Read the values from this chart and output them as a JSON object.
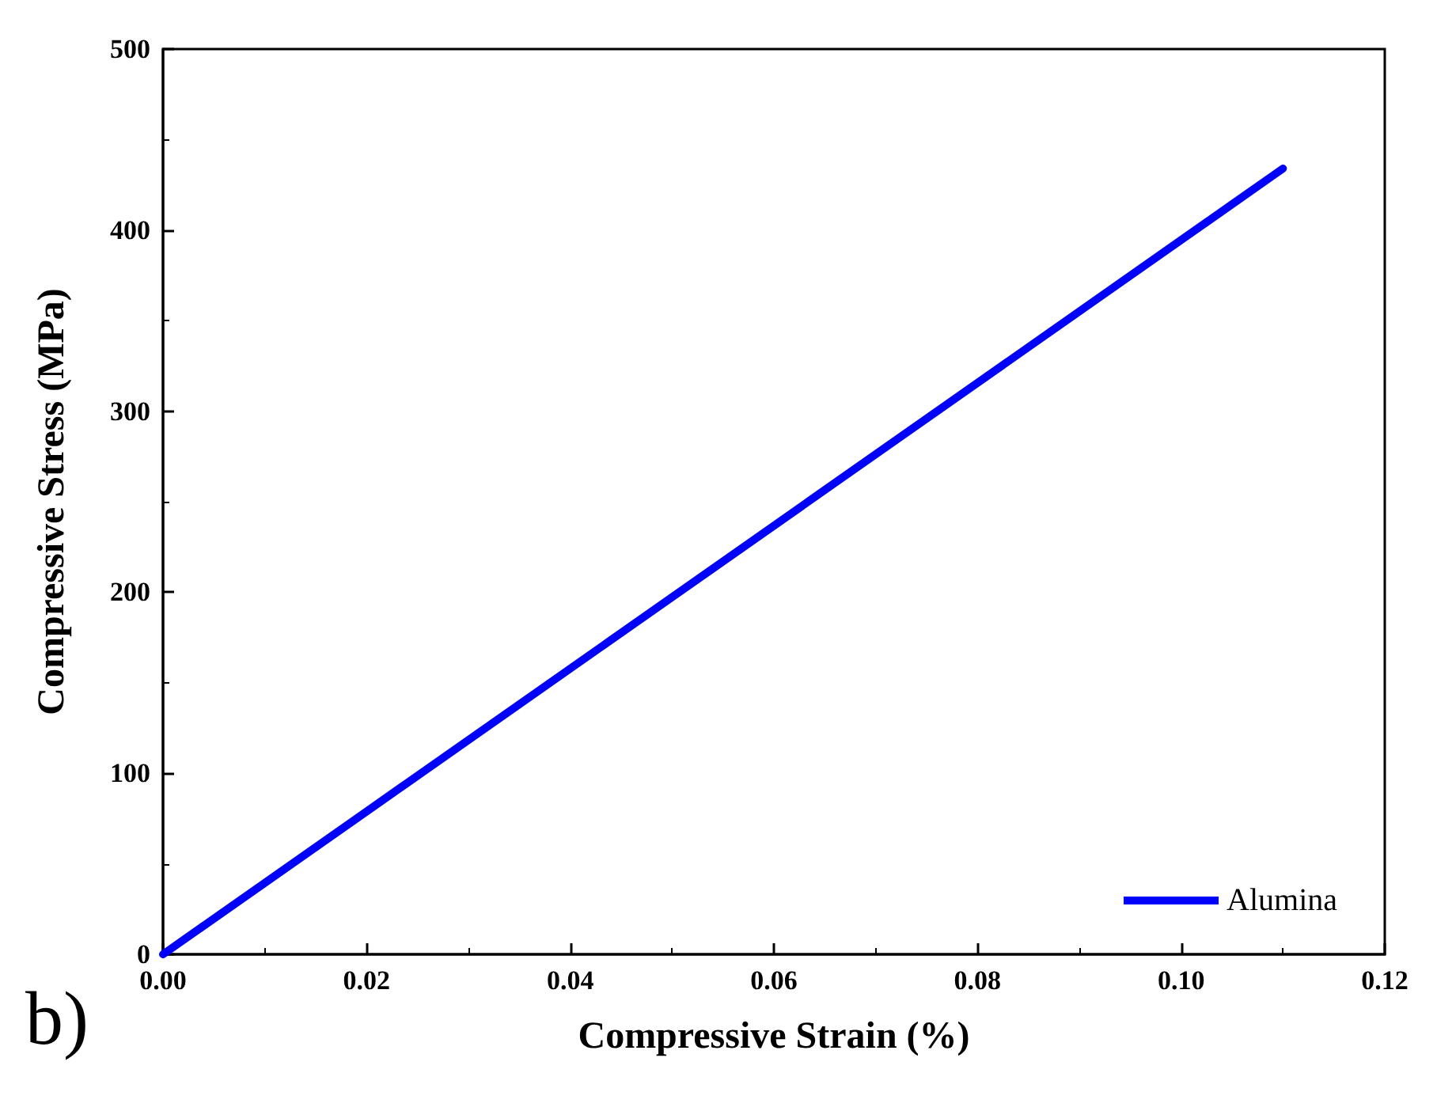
{
  "chart_data": {
    "type": "line",
    "xlabel": "Compressive Strain (%)",
    "ylabel": "Compressive Stress (MPa)",
    "x": [
      0,
      0.11
    ],
    "series": [
      {
        "name": "Alumina",
        "color": "#0000ff",
        "values": [
          0,
          434
        ]
      }
    ],
    "xlim": [
      0,
      0.12
    ],
    "xticks": [
      {
        "value": 0,
        "label": "0.00"
      },
      {
        "value": 0.02,
        "label": "0.02"
      },
      {
        "value": 0.04,
        "label": "0.04"
      },
      {
        "value": 0.06,
        "label": "0.06"
      },
      {
        "value": 0.08,
        "label": "0.08"
      },
      {
        "value": 0.1,
        "label": "0.10"
      },
      {
        "value": 0.12,
        "label": "0.12"
      }
    ],
    "ylim": [
      0,
      500
    ],
    "yticks": [
      0,
      100,
      200,
      300,
      400,
      500
    ],
    "legend": "bottom right",
    "grid": false,
    "marker": "none",
    "line_style": "solid",
    "annotations": [
      "b)"
    ]
  }
}
